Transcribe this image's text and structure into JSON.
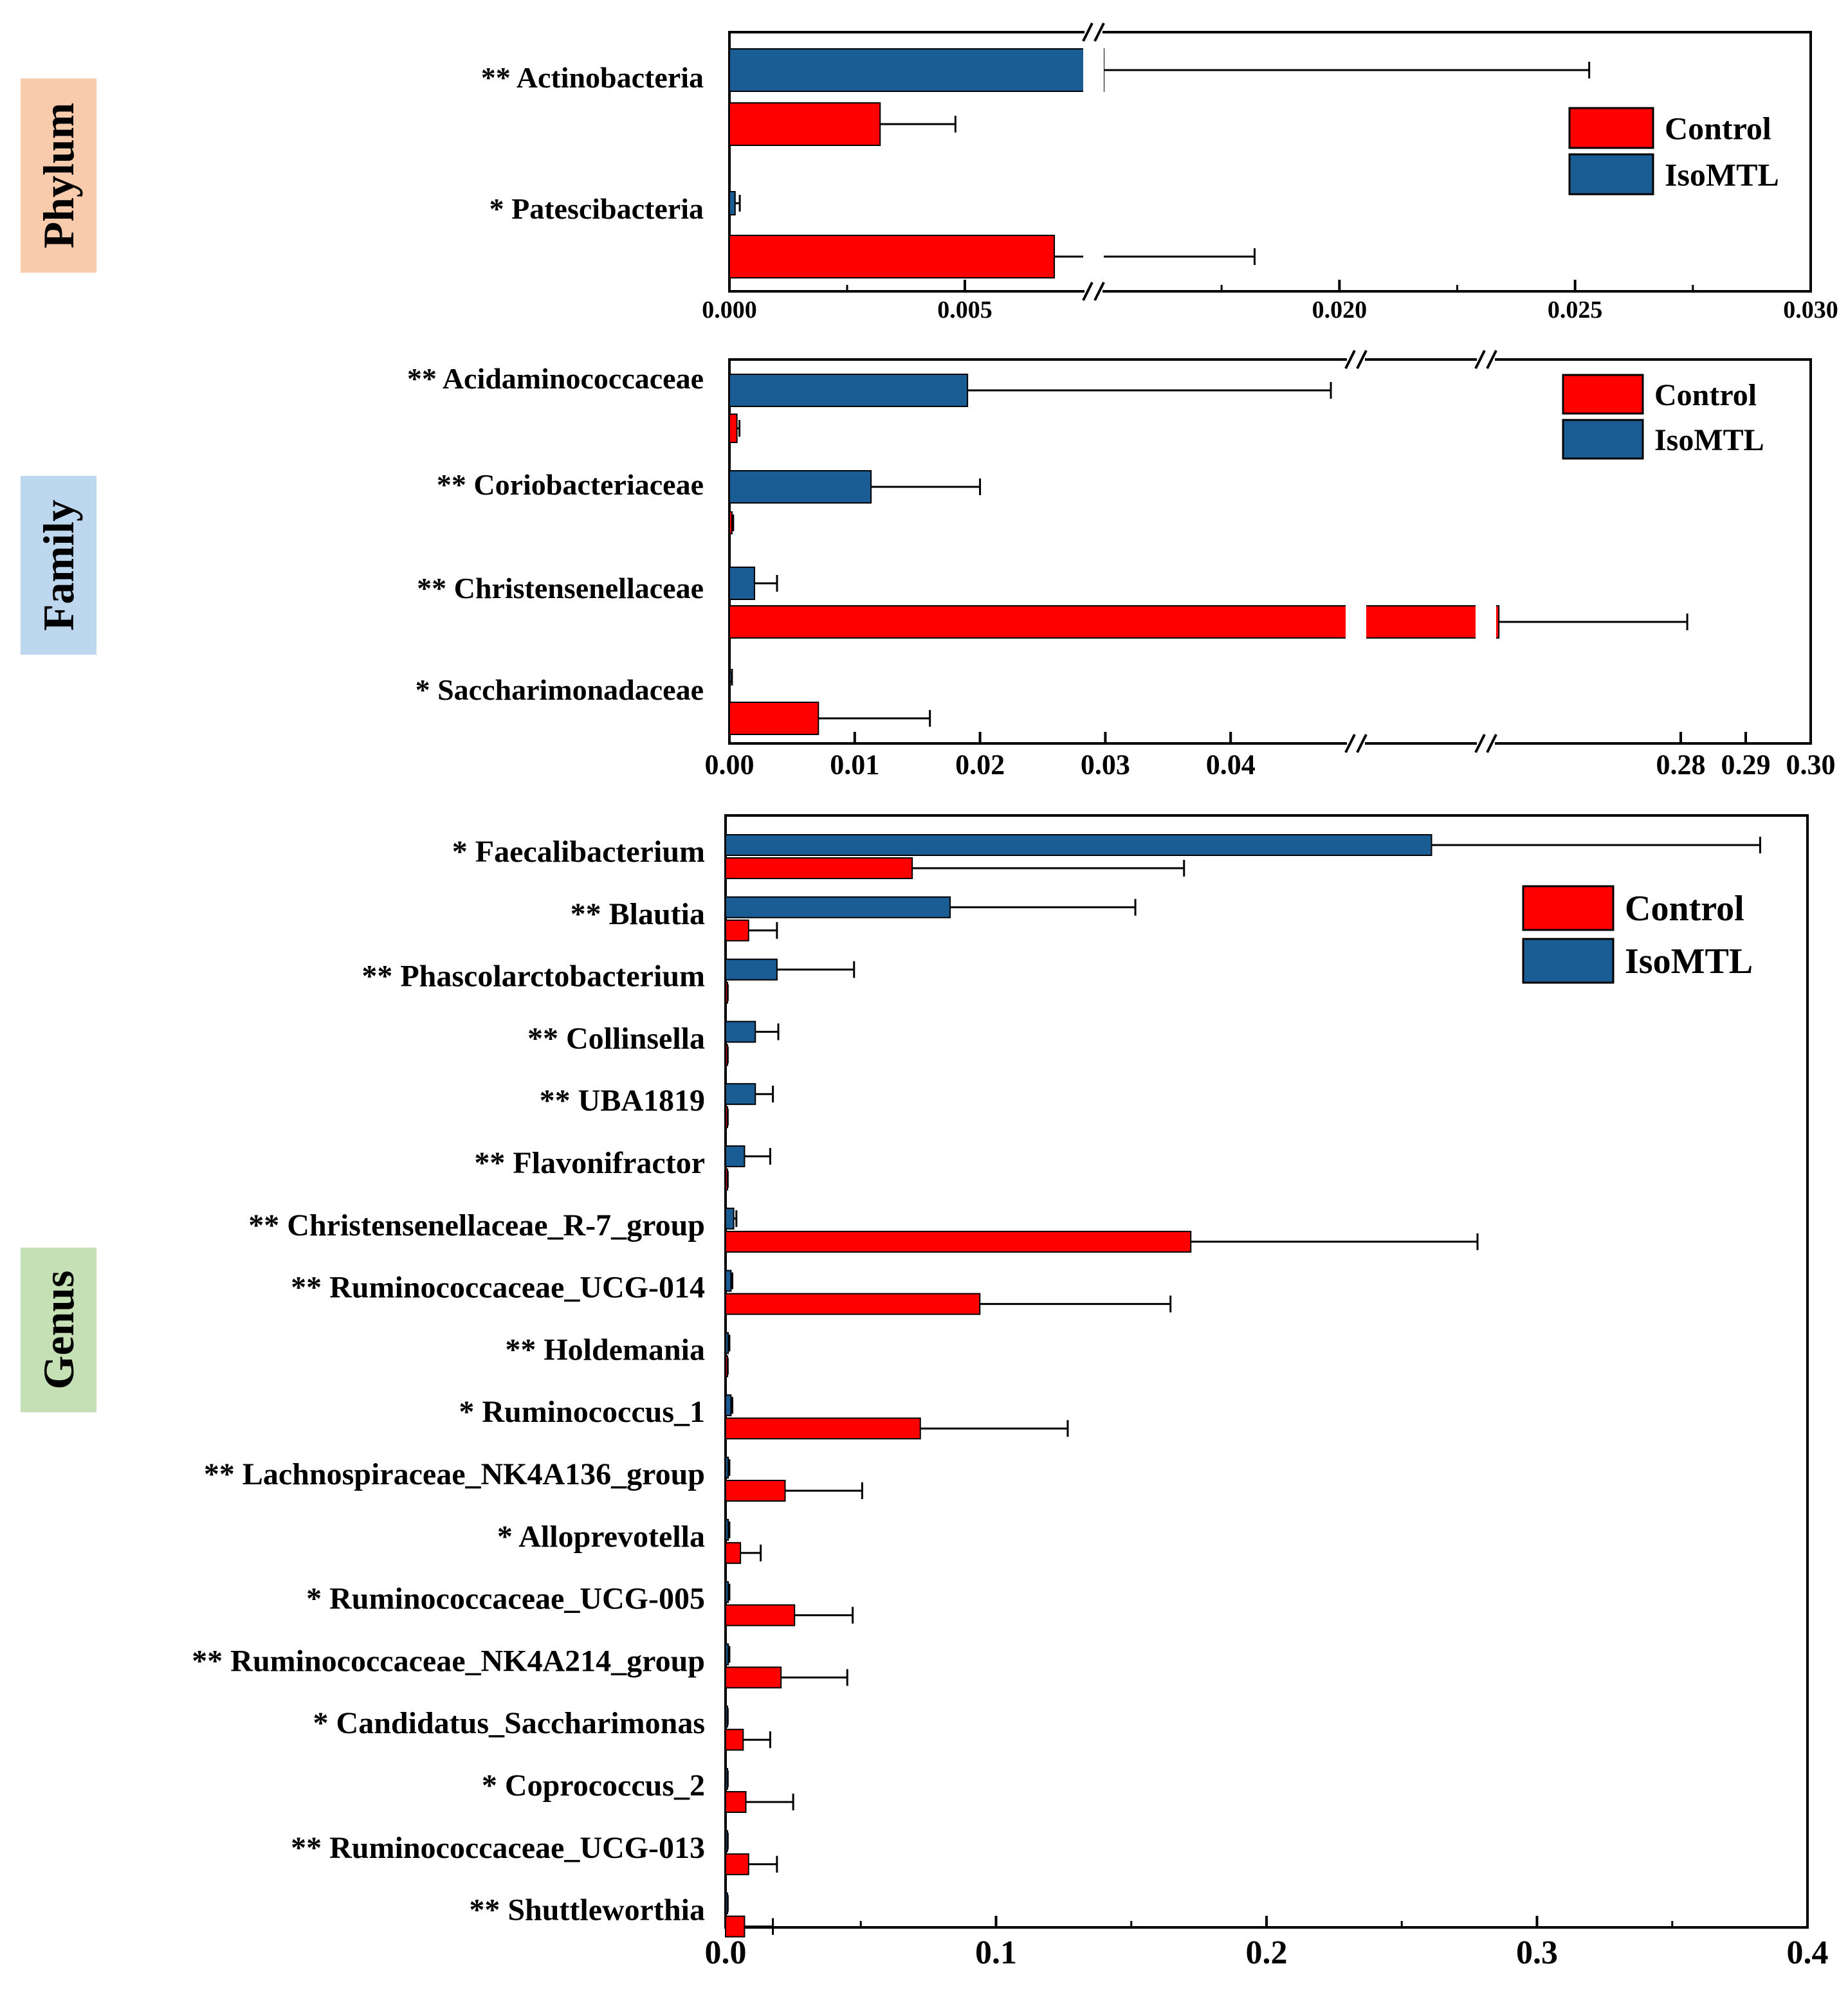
{
  "colors": {
    "control": "#ff0000",
    "isomtl": "#1a5c94",
    "phylum_bg": "#f8cbad",
    "family_bg": "#bdd7ee",
    "genus_bg": "#c5e0b4"
  },
  "chart_data": [
    {
      "type": "bar",
      "orientation": "horizontal",
      "side_label": "Phylum",
      "categories": [
        "** Actinobacteria",
        "* Patescibacteria"
      ],
      "series": [
        {
          "name": "IsoMTL",
          "values": [
            0.011,
            0.00012
          ],
          "errors": [
            0.0143,
            0.0001
          ]
        },
        {
          "name": "Control",
          "values": [
            0.0032,
            0.0069
          ],
          "errors": [
            0.0016,
            0.0113
          ]
        }
      ],
      "axis_break": {
        "from": 0.0075,
        "to": 0.015
      },
      "x_tick_labels": [
        "0.000",
        "0.005",
        "0.020",
        "0.025",
        "0.030"
      ],
      "xlim": [
        0,
        0.03
      ],
      "legend": [
        "Control",
        "IsoMTL"
      ],
      "legend_position": "right"
    },
    {
      "type": "bar",
      "orientation": "horizontal",
      "side_label": "Family",
      "categories": [
        "** Acidaminococcaceae",
        "** Coriobacteriaceae",
        "** Christensenellaceae",
        "* Saccharimonadaceae"
      ],
      "series": [
        {
          "name": "IsoMTL",
          "values": [
            0.019,
            0.0113,
            0.002,
            0.0001
          ],
          "errors": [
            0.029,
            0.0087,
            0.0018,
            0.0001
          ]
        },
        {
          "name": "Control",
          "values": [
            0.0006,
            0.0002,
            0.252,
            0.0071
          ],
          "errors": [
            0.0002,
            0.0001,
            0.029,
            0.0089
          ]
        }
      ],
      "axis_break": {
        "from": 0.05,
        "to": 0.25
      },
      "x_tick_labels": [
        "0.00",
        "0.01",
        "0.02",
        "0.03",
        "0.04",
        "0.28",
        "0.29",
        "0.30"
      ],
      "xlim": [
        0,
        0.3
      ],
      "legend": [
        "Control",
        "IsoMTL"
      ],
      "legend_position": "top-right"
    },
    {
      "type": "bar",
      "orientation": "horizontal",
      "side_label": "Genus",
      "categories": [
        "* Faecalibacterium",
        "** Blautia",
        "** Phascolarctobacterium",
        "** Collinsella",
        "** UBA1819",
        "** Flavonifractor",
        "** Christensenellaceae_R-7_group",
        "** Ruminococcaceae_UCG-014",
        "** Holdemania",
        "* Ruminococcus_1",
        "** Lachnospiraceae_NK4A136_group",
        "* Alloprevotella",
        "* Ruminococcaceae_UCG-005",
        "** Ruminococcaceae_NK4A214_group",
        "* Candidatus_Saccharimonas",
        "* Coprococcus_2",
        "** Ruminococcaceae_UCG-013",
        "** Shuttleworthia"
      ],
      "series": [
        {
          "name": "IsoMTL",
          "values": [
            0.261,
            0.083,
            0.019,
            0.011,
            0.011,
            0.007,
            0.003,
            0.002,
            0.001,
            0.002,
            0.001,
            0.001,
            0.001,
            0.001,
            0.0005,
            0.0005,
            0.0005,
            0.0005
          ],
          "errors": [
            0.1215,
            0.0685,
            0.0285,
            0.0085,
            0.0065,
            0.0095,
            0.001,
            0.0005,
            0.0004,
            0.0005,
            0.0004,
            0.0004,
            0.0004,
            0.0004,
            0.0003,
            0.0003,
            0.0003,
            0.0003
          ]
        },
        {
          "name": "Control",
          "values": [
            0.069,
            0.0085,
            0.0005,
            0.0005,
            0.0005,
            0.0005,
            0.172,
            0.094,
            0.0005,
            0.072,
            0.022,
            0.0055,
            0.0255,
            0.0205,
            0.0065,
            0.0075,
            0.0085,
            0.007
          ],
          "errors": [
            0.1005,
            0.0105,
            0.0003,
            0.0003,
            0.0003,
            0.0003,
            0.106,
            0.0705,
            0.0003,
            0.0545,
            0.0285,
            0.0075,
            0.0215,
            0.0245,
            0.01,
            0.0175,
            0.0105,
            0.0105
          ]
        }
      ],
      "x_tick_labels": [
        "0.0",
        "0.1",
        "0.2",
        "0.3",
        "0.4"
      ],
      "xlim": [
        0,
        0.4
      ],
      "legend": [
        "Control",
        "IsoMTL"
      ],
      "legend_position": "top-right"
    }
  ]
}
